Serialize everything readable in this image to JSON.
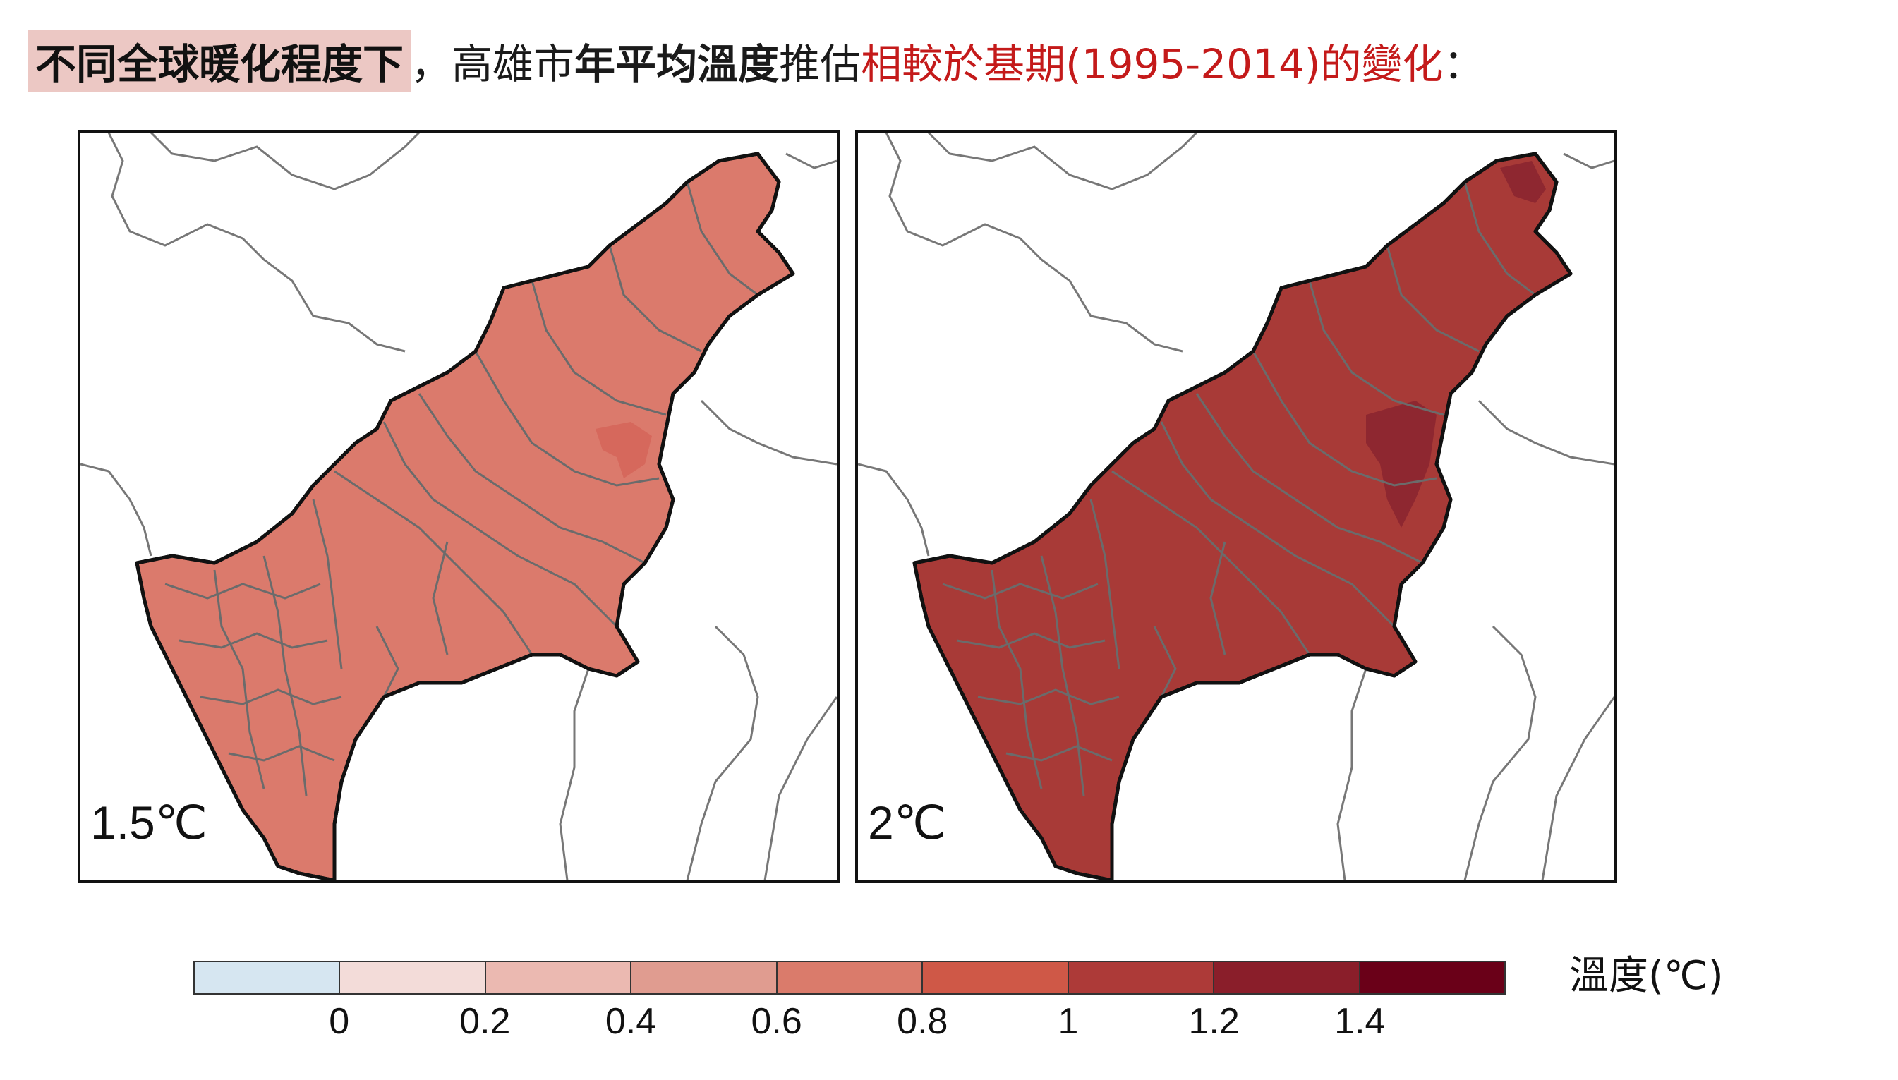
{
  "title": {
    "highlight": "不同全球暖化程度下",
    "comma": "，",
    "plain1": "高雄市",
    "bold": "年平均溫度",
    "plain2": "推估",
    "red": "相較於基期(1995-2014)的變化",
    "colon": "："
  },
  "panels": [
    {
      "label": "1.5℃",
      "fill_color": "#db7a6c",
      "hotspot_color": "#d6685c"
    },
    {
      "label": "2℃",
      "fill_color": "#a83a37",
      "hotspot_color": "#8e2730"
    }
  ],
  "legend": {
    "title": "溫度(℃)",
    "colors": [
      "#d6e6f1",
      "#f3dcd9",
      "#ebb9b1",
      "#e09c90",
      "#da7b6b",
      "#cf5847",
      "#ad3a38",
      "#8a1e2a",
      "#6a0018"
    ],
    "ticks": [
      "0",
      "0.2",
      "0.4",
      "0.6",
      "0.8",
      "1",
      "1.2",
      "1.4"
    ]
  },
  "colors": {
    "outline": "#111111",
    "district_lines": "#6b6b6b",
    "neighbor_lines": "#777777"
  }
}
